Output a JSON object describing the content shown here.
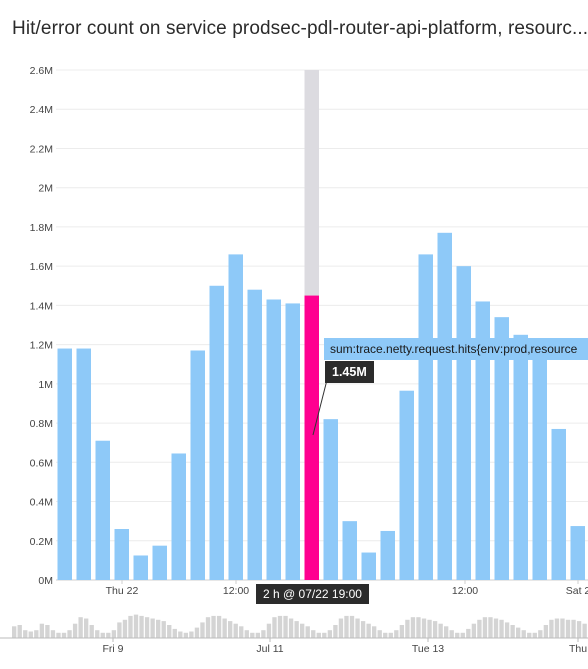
{
  "chart_data": {
    "type": "bar",
    "title": "Hit/error count on service prodsec-pdl-router-api-platform, resourc...",
    "ylim": [
      0,
      2600000
    ],
    "y_ticks": [
      "0M",
      "0.2M",
      "0.4M",
      "0.6M",
      "0.8M",
      "1M",
      "1.2M",
      "1.4M",
      "1.6M",
      "1.8M",
      "2M",
      "2.2M",
      "2.4M",
      "2.6M"
    ],
    "x_ticks": [
      "Thu 22",
      "12:00",
      "12:00",
      "Sat 2"
    ],
    "values": [
      1180000,
      1180000,
      710000,
      260000,
      125000,
      175000,
      645000,
      1170000,
      1500000,
      1660000,
      1480000,
      1430000,
      1410000,
      1450000,
      820000,
      300000,
      140000,
      250000,
      965000,
      1660000,
      1770000,
      1600000,
      1420000,
      1340000,
      1250000,
      1180000,
      770000,
      275000
    ],
    "highlight_index": 13,
    "colors": {
      "bar": "#8ec9f8",
      "highlight": "#ff0090",
      "highlight_bg": "#dcdbe0"
    },
    "tooltip": {
      "series": "sum:trace.netty.request.hits{env:prod,resource",
      "value": "1.45M"
    },
    "x_selected": "2 h @ 07/22 19:00",
    "navigator": {
      "ticks": [
        "Fri 9",
        "Jul 11",
        "Tue 13",
        "Thu"
      ],
      "levels": [
        0.45,
        0.5,
        0.3,
        0.25,
        0.3,
        0.55,
        0.5,
        0.3,
        0.2,
        0.2,
        0.3,
        0.55,
        0.8,
        0.75,
        0.5,
        0.3,
        0.2,
        0.2,
        0.3,
        0.6,
        0.7,
        0.85,
        0.9,
        0.85,
        0.8,
        0.75,
        0.7,
        0.65,
        0.5,
        0.35,
        0.25,
        0.2,
        0.25,
        0.4,
        0.6,
        0.8,
        0.85,
        0.85,
        0.75,
        0.65,
        0.55,
        0.45,
        0.3,
        0.2,
        0.2,
        0.3,
        0.55,
        0.8,
        0.85,
        0.85,
        0.75,
        0.65,
        0.55,
        0.45,
        0.3,
        0.2,
        0.2,
        0.3,
        0.5,
        0.75,
        0.85,
        0.85,
        0.75,
        0.65,
        0.55,
        0.45,
        0.3,
        0.2,
        0.2,
        0.3,
        0.5,
        0.7,
        0.8,
        0.8,
        0.75,
        0.7,
        0.65,
        0.55,
        0.45,
        0.3,
        0.2,
        0.2,
        0.35,
        0.55,
        0.7,
        0.8,
        0.8,
        0.75,
        0.7,
        0.6,
        0.5,
        0.4,
        0.3,
        0.2,
        0.2,
        0.3,
        0.5,
        0.7,
        0.75,
        0.75,
        0.7,
        0.7,
        0.65,
        0.55
      ]
    }
  }
}
